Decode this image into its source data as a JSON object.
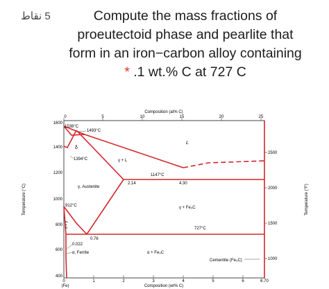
{
  "question": {
    "points_label": "5 نقاط",
    "line1": "Compute the mass fractions of",
    "line2": "proeutectoid phase and pearlite that",
    "line3": "form in an iron−carbon alloy containing",
    "required_mark": "*",
    "line4": ".1 wt.% C at 727 C"
  },
  "diagram": {
    "top_axis_title": "Composition (at% C)",
    "top_ticks": [
      "0",
      "5",
      "10",
      "15",
      "20",
      "25"
    ],
    "bottom_axis_title": "Composition (wt% C)",
    "bottom_ticks": [
      "0",
      "1",
      "2",
      "3",
      "4",
      "5",
      "6",
      "6.70"
    ],
    "bottom_end_label": "(Fe)",
    "left_axis_title": "Temperature (°C)",
    "left_ticks": [
      "1600",
      "1400",
      "1200",
      "1000",
      "800",
      "600",
      "400"
    ],
    "right_axis_title": "Temperature (°F)",
    "right_ticks": [
      "2500",
      "2000",
      "1500",
      "1000"
    ],
    "labels": {
      "t1538": "1538°C",
      "t1493": "1493°C",
      "delta": "δ",
      "t1394": "1394°C",
      "gamma_l": "γ + L",
      "liquid": "L",
      "t1147": "1147°C",
      "c214": "2.14",
      "c430": "4.30",
      "austenite": "γ, Austenite",
      "t912": "912°C",
      "gamma_fe3c": "γ + Fe₃C",
      "alpha_gamma": "α + γ",
      "t727": "727°C",
      "c076": "0.76",
      "c0022": "0.022",
      "ferrite": "α, Ferrite",
      "alpha_fe3c": "α + Fe₃C",
      "cementite": "Cementite (Fe₃C)"
    },
    "colors": {
      "phase_line": "#d2262c",
      "frame": "#444444"
    }
  }
}
